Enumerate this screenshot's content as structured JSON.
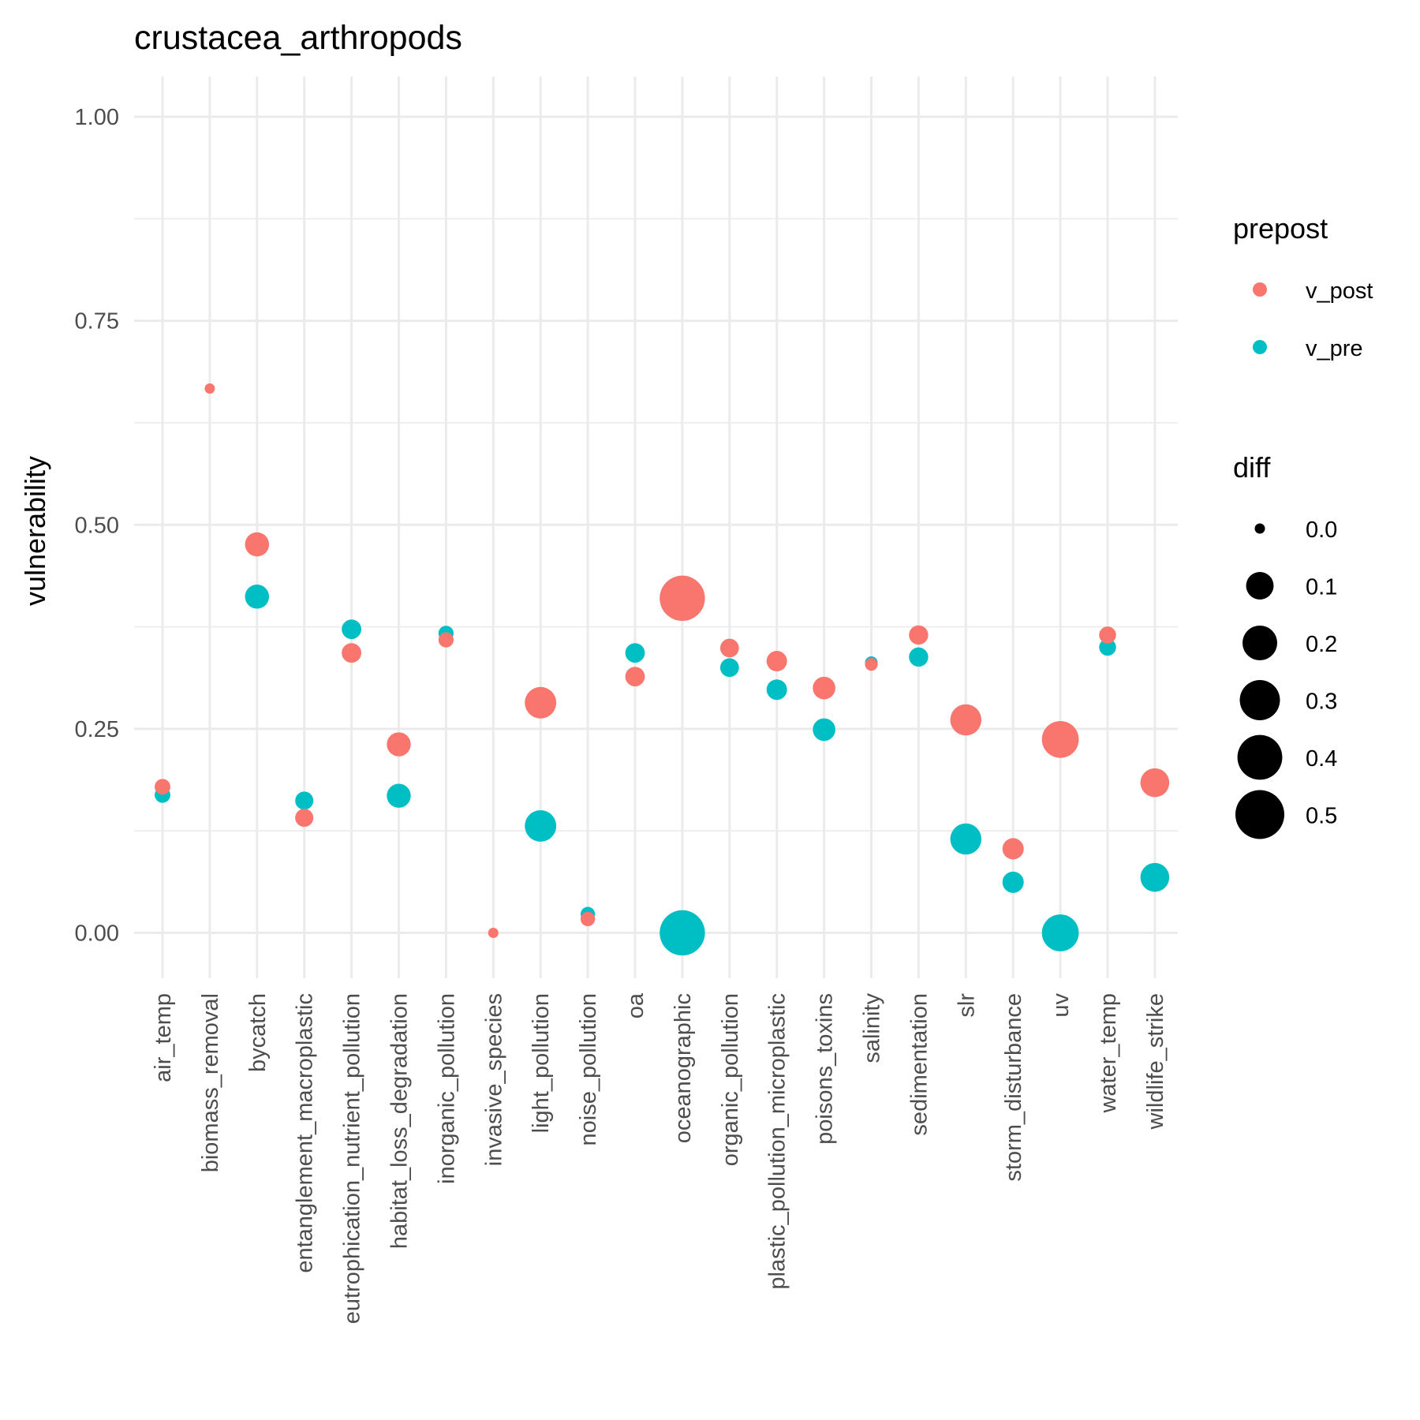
{
  "chart_data": {
    "type": "scatter",
    "title": "crustacea_arthropods",
    "xlabel": "",
    "ylabel": "vulnerability",
    "ylim": [
      -0.05,
      1.05
    ],
    "y_ticks": [
      "0.00",
      "0.25",
      "0.50",
      "0.75",
      "1.00"
    ],
    "y_tick_values": [
      0,
      0.25,
      0.5,
      0.75,
      1.0
    ],
    "grid": true,
    "categories": [
      "air_temp",
      "biomass_removal",
      "bycatch",
      "entanglement_macroplastic",
      "eutrophication_nutrient_pollution",
      "habitat_loss_degradation",
      "inorganic_pollution",
      "invasive_species",
      "light_pollution",
      "noise_pollution",
      "oa",
      "oceanographic",
      "organic_pollution",
      "plastic_pollution_microplastic",
      "poisons_toxins",
      "salinity",
      "sedimentation",
      "slr",
      "storm_disturbance",
      "uv",
      "water_temp",
      "wildlife_strike"
    ],
    "series": [
      {
        "name": "v_post",
        "color": "#F8766D",
        "values": [
          0.179,
          0.667,
          0.476,
          0.141,
          0.343,
          0.231,
          0.359,
          0.0,
          0.282,
          0.017,
          0.314,
          0.41,
          0.349,
          0.333,
          0.3,
          0.329,
          0.365,
          0.261,
          0.103,
          0.237,
          0.365,
          0.184
        ]
      },
      {
        "name": "v_pre",
        "color": "#00BFC4",
        "values": [
          0.169,
          null,
          0.412,
          0.162,
          0.372,
          0.168,
          0.367,
          null,
          0.131,
          0.023,
          0.343,
          0.0,
          0.325,
          0.298,
          0.249,
          0.331,
          0.338,
          0.115,
          0.062,
          0.0,
          0.35,
          0.068
        ]
      }
    ],
    "size_legend": {
      "title": "diff",
      "levels": [
        "0.0",
        "0.1",
        "0.2",
        "0.3",
        "0.4",
        "0.5"
      ],
      "level_values": [
        0.0,
        0.1,
        0.2,
        0.3,
        0.4,
        0.5
      ]
    },
    "color_legend": {
      "title": "prepost",
      "position": "right"
    }
  }
}
